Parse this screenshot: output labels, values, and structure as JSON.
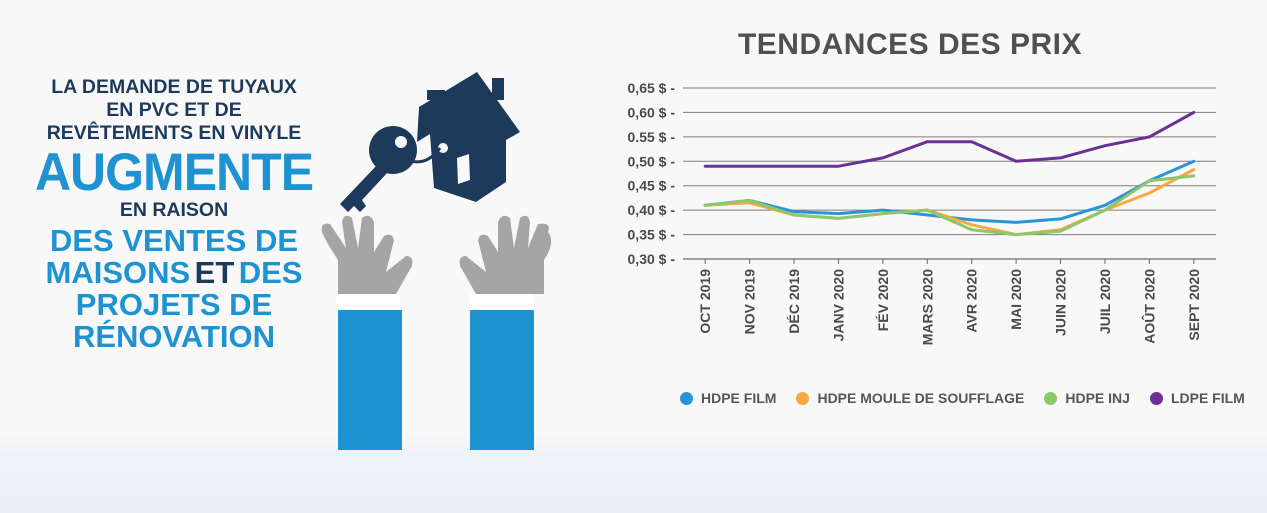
{
  "headline": {
    "line1": "LA DEMANDE DE TUYAUX",
    "line2": "EN PVC ET DE",
    "line3": "REVÊTEMENTS EN VINYLE",
    "big_word": "AUGMENTE",
    "reason": "EN RAISON",
    "line4": "DES VENTES DE",
    "line5_a": "MAISONS",
    "line5_b": "ET",
    "line5_c": "DES",
    "line6": "PROJETS DE",
    "line7": "RÉNOVATION"
  },
  "colors": {
    "navy": "#1e3a5b",
    "blue": "#1f92d2",
    "hand_gray": "#a5a5a5"
  },
  "chart_data": {
    "type": "line",
    "title": "TENDANCES DES PRIX",
    "categories": [
      "OCT 2019",
      "NOV 2019",
      "DÉC 2019",
      "JANV 2020",
      "FÉV 2020",
      "MARS 2020",
      "AVR 2020",
      "MAI 2020",
      "JUIN 2020",
      "JUIL 2020",
      "AOÛT 2020",
      "SEPT 2020"
    ],
    "y_ticks": [
      "0,30 $",
      "0,35 $",
      "0,40 $",
      "0,45 $",
      "0,50 $",
      "0.55 $",
      "0,60 $",
      "0,65 $"
    ],
    "ylim": [
      0.3,
      0.65
    ],
    "grid": true,
    "legend_position": "bottom",
    "series": [
      {
        "name": "HDPE FILM",
        "color": "#2b94d6",
        "values": [
          0.41,
          0.42,
          0.397,
          0.393,
          0.4,
          0.39,
          0.38,
          0.375,
          0.382,
          0.41,
          0.46,
          0.5
        ]
      },
      {
        "name": "HDPE MOULE DE SOUFFLAGE",
        "color": "#f6a940",
        "values": [
          0.41,
          0.415,
          0.39,
          0.383,
          0.393,
          0.4,
          0.37,
          0.35,
          0.36,
          0.4,
          0.435,
          0.483
        ]
      },
      {
        "name": "HDPE INJ",
        "color": "#8dc66b",
        "values": [
          0.41,
          0.42,
          0.39,
          0.383,
          0.393,
          0.4,
          0.36,
          0.35,
          0.357,
          0.4,
          0.46,
          0.47
        ]
      },
      {
        "name": "LDPE FILM",
        "color": "#6a3195",
        "values": [
          0.49,
          0.49,
          0.49,
          0.49,
          0.507,
          0.54,
          0.54,
          0.5,
          0.507,
          0.532,
          0.55,
          0.6
        ]
      }
    ]
  }
}
